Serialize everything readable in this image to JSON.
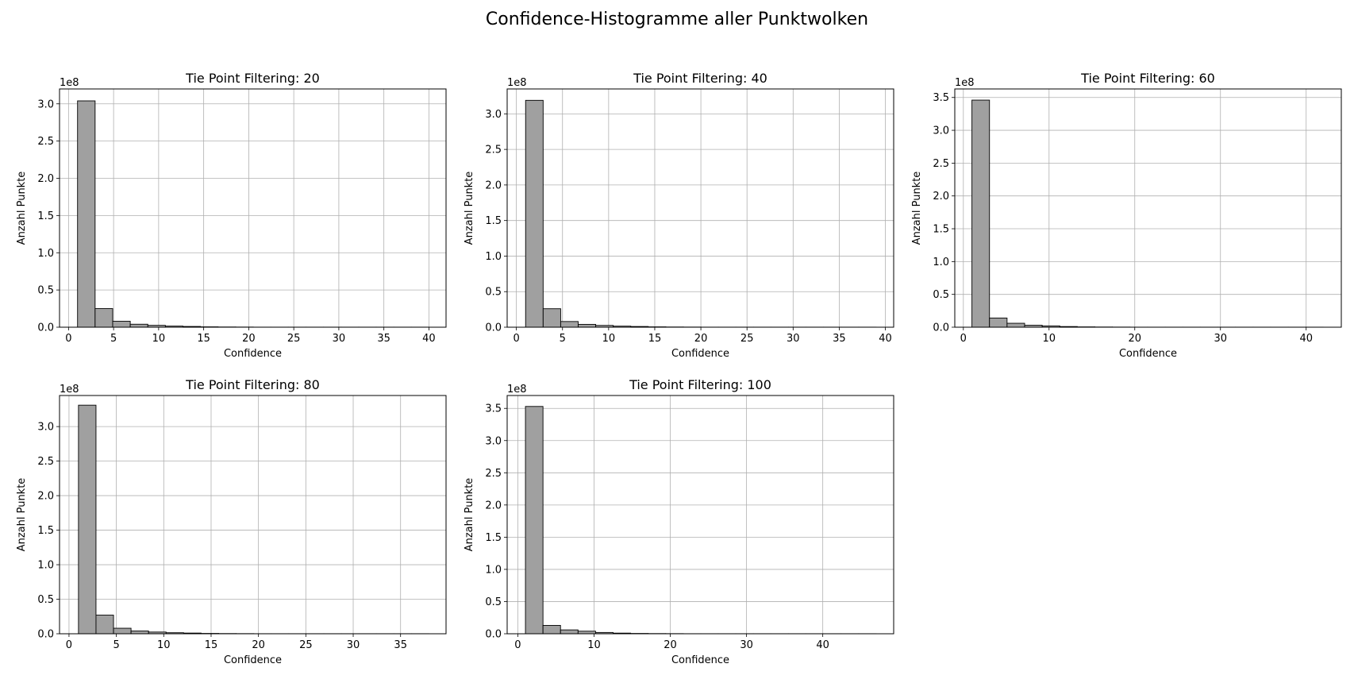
{
  "title": "Confidence-Histogramme aller Punktwolken",
  "chart_data": [
    {
      "type": "bar",
      "title": "Tie Point Filtering: 20",
      "xlabel": "Confidence",
      "ylabel": "Anzahl Punkte",
      "y_offset_label": "1e8",
      "xlim": [
        -1,
        41.9
      ],
      "ylim": [
        0,
        3.2
      ],
      "xticks": [
        0,
        5,
        10,
        15,
        20,
        25,
        30,
        35,
        40
      ],
      "yticks": [
        0.0,
        0.5,
        1.0,
        1.5,
        2.0,
        2.5,
        3.0
      ],
      "grid": true,
      "bin_width": 1.95,
      "bin_start": 1,
      "values": [
        3.04,
        0.25,
        0.08,
        0.04,
        0.025,
        0.015,
        0.01,
        0.005,
        0.003,
        0.002,
        0.001,
        0.001,
        0.001,
        0.001,
        0.001,
        0.001,
        0.001,
        0.001,
        0.001,
        0.001
      ]
    },
    {
      "type": "bar",
      "title": "Tie Point Filtering: 40",
      "xlabel": "Confidence",
      "ylabel": "Anzahl Punkte",
      "y_offset_label": "1e8",
      "xlim": [
        -1,
        40.9
      ],
      "ylim": [
        0,
        3.35
      ],
      "xticks": [
        0,
        5,
        10,
        15,
        20,
        25,
        30,
        35,
        40
      ],
      "yticks": [
        0.0,
        0.5,
        1.0,
        1.5,
        2.0,
        2.5,
        3.0
      ],
      "grid": true,
      "bin_width": 1.9,
      "bin_start": 1,
      "values": [
        3.19,
        0.26,
        0.08,
        0.04,
        0.025,
        0.015,
        0.01,
        0.005,
        0.003,
        0.002,
        0.001,
        0.001,
        0.001,
        0.001,
        0.001,
        0.001,
        0.001,
        0.001,
        0.001,
        0.001
      ]
    },
    {
      "type": "bar",
      "title": "Tie Point Filtering: 60",
      "xlabel": "Confidence",
      "ylabel": "Anzahl Punkte",
      "y_offset_label": "1e8",
      "xlim": [
        -1,
        44.1
      ],
      "ylim": [
        0,
        3.63
      ],
      "xticks": [
        0,
        10,
        20,
        30,
        40
      ],
      "yticks": [
        0.0,
        0.5,
        1.0,
        1.5,
        2.0,
        2.5,
        3.0,
        3.5
      ],
      "grid": true,
      "bin_width": 2.05,
      "bin_start": 1,
      "values": [
        3.46,
        0.14,
        0.06,
        0.03,
        0.02,
        0.01,
        0.005,
        0.003,
        0.002,
        0.001,
        0.001,
        0.001,
        0.001,
        0.001,
        0.001,
        0.001,
        0.001,
        0.001,
        0.001,
        0.001
      ]
    },
    {
      "type": "bar",
      "title": "Tie Point Filtering: 80",
      "xlabel": "Confidence",
      "ylabel": "Anzahl Punkte",
      "y_offset_label": "1e8",
      "xlim": [
        -1,
        39.8
      ],
      "ylim": [
        0,
        3.45
      ],
      "xticks": [
        0,
        5,
        10,
        15,
        20,
        25,
        30,
        35
      ],
      "yticks": [
        0.0,
        0.5,
        1.0,
        1.5,
        2.0,
        2.5,
        3.0
      ],
      "grid": true,
      "bin_width": 1.85,
      "bin_start": 1,
      "values": [
        3.31,
        0.27,
        0.08,
        0.04,
        0.025,
        0.015,
        0.01,
        0.005,
        0.003,
        0.002,
        0.001,
        0.001,
        0.001,
        0.001,
        0.001,
        0.001,
        0.001,
        0.001,
        0.001,
        0.001
      ]
    },
    {
      "type": "bar",
      "title": "Tie Point Filtering: 100",
      "xlabel": "Confidence",
      "ylabel": "Anzahl Punkte",
      "y_offset_label": "1e8",
      "xlim": [
        -1.4,
        49.3
      ],
      "ylim": [
        0,
        3.7
      ],
      "xticks": [
        0,
        10,
        20,
        30,
        40
      ],
      "yticks": [
        0.0,
        0.5,
        1.0,
        1.5,
        2.0,
        2.5,
        3.0,
        3.5
      ],
      "grid": true,
      "bin_width": 2.3,
      "bin_start": 1,
      "values": [
        3.53,
        0.13,
        0.06,
        0.04,
        0.02,
        0.01,
        0.005,
        0.003,
        0.002,
        0.001,
        0.001,
        0.001,
        0.001,
        0.001,
        0.001,
        0.001,
        0.001,
        0.001,
        0.001,
        0.001
      ]
    }
  ]
}
